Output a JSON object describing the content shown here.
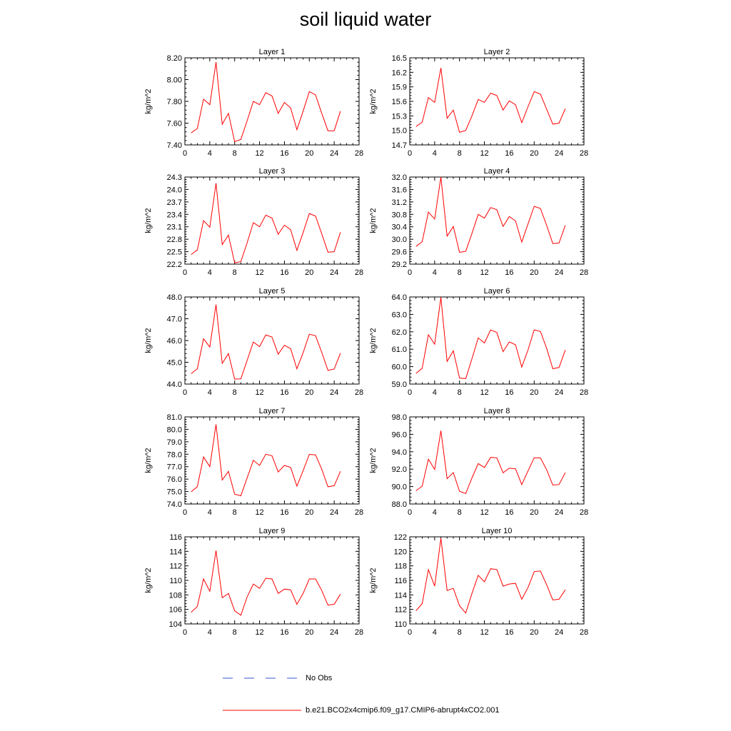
{
  "title": "soil liquid water",
  "legend": [
    {
      "label": "No Obs",
      "color": "#3355cc",
      "style": "dashed"
    },
    {
      "label": "b.e21.BCO2x4cmip6.f09_g17.CMIP6-abrupt4xCO2.001",
      "color": "#ff0000",
      "style": "solid"
    }
  ],
  "chart_data": [
    {
      "type": "line",
      "title": "Layer 1",
      "ylabel": "kg/m^2",
      "xlim": [
        0,
        28
      ],
      "xticks": [
        "0",
        "4",
        "8",
        "12",
        "16",
        "20",
        "24",
        "28"
      ],
      "ylim": [
        7.4,
        8.2
      ],
      "yticks": [
        "7.40",
        "7.60",
        "7.80",
        "8.00",
        "8.20"
      ],
      "series": [
        {
          "color": "#ff0000",
          "x": [
            1,
            2,
            3,
            4,
            5,
            6,
            7,
            8,
            9,
            10,
            11,
            12,
            13,
            14,
            15,
            16,
            17,
            18,
            19,
            20,
            21,
            22,
            23,
            24,
            25
          ],
          "y": [
            7.51,
            7.55,
            7.82,
            7.77,
            8.16,
            7.59,
            7.69,
            7.43,
            7.45,
            7.62,
            7.8,
            7.77,
            7.88,
            7.85,
            7.69,
            7.79,
            7.74,
            7.54,
            7.71,
            7.89,
            7.86,
            7.69,
            7.53,
            7.53,
            7.71
          ]
        }
      ]
    },
    {
      "type": "line",
      "title": "Layer 2",
      "ylabel": "kg/m^2",
      "xlim": [
        0,
        28
      ],
      "xticks": [
        "0",
        "4",
        "8",
        "12",
        "16",
        "20",
        "24",
        "28"
      ],
      "ylim": [
        14.7,
        16.5
      ],
      "yticks": [
        "14.7",
        "15.0",
        "15.3",
        "15.6",
        "15.9",
        "16.2",
        "16.5"
      ],
      "series": [
        {
          "color": "#ff0000",
          "x": [
            1,
            2,
            3,
            4,
            5,
            6,
            7,
            8,
            9,
            10,
            11,
            12,
            13,
            14,
            15,
            16,
            17,
            18,
            19,
            20,
            21,
            22,
            23,
            24,
            25
          ],
          "y": [
            15.08,
            15.17,
            15.68,
            15.58,
            16.29,
            15.25,
            15.42,
            14.96,
            15.0,
            15.3,
            15.64,
            15.58,
            15.77,
            15.72,
            15.42,
            15.61,
            15.53,
            15.16,
            15.49,
            15.8,
            15.75,
            15.44,
            15.13,
            15.15,
            15.45
          ]
        }
      ]
    },
    {
      "type": "line",
      "title": "Layer 3",
      "ylabel": "kg/m^2",
      "xlim": [
        0,
        28
      ],
      "xticks": [
        "0",
        "4",
        "8",
        "12",
        "16",
        "20",
        "24",
        "28"
      ],
      "ylim": [
        22.2,
        24.3
      ],
      "yticks": [
        "22.2",
        "22.5",
        "22.8",
        "23.1",
        "23.4",
        "23.7",
        "24.0",
        "24.3"
      ],
      "series": [
        {
          "color": "#ff0000",
          "x": [
            1,
            2,
            3,
            4,
            5,
            6,
            7,
            8,
            9,
            10,
            11,
            12,
            13,
            14,
            15,
            16,
            17,
            18,
            19,
            20,
            21,
            22,
            23,
            24,
            25
          ],
          "y": [
            22.43,
            22.54,
            23.25,
            23.09,
            24.15,
            22.67,
            22.9,
            22.23,
            22.26,
            22.71,
            23.2,
            23.1,
            23.38,
            23.31,
            22.92,
            23.14,
            23.03,
            22.53,
            22.96,
            23.42,
            23.36,
            22.93,
            22.49,
            22.5,
            22.97
          ]
        }
      ]
    },
    {
      "type": "line",
      "title": "Layer 4",
      "ylabel": "kg/m^2",
      "xlim": [
        0,
        28
      ],
      "xticks": [
        "0",
        "4",
        "8",
        "12",
        "16",
        "20",
        "24",
        "28"
      ],
      "ylim": [
        29.2,
        32.0
      ],
      "yticks": [
        "29.2",
        "29.6",
        "30.0",
        "30.4",
        "30.8",
        "31.2",
        "31.6",
        "32.0"
      ],
      "series": [
        {
          "color": "#ff0000",
          "x": [
            1,
            2,
            3,
            4,
            5,
            6,
            7,
            8,
            9,
            10,
            11,
            12,
            13,
            14,
            15,
            16,
            17,
            18,
            19,
            20,
            21,
            22,
            23,
            24,
            25
          ],
          "y": [
            29.77,
            29.92,
            30.87,
            30.65,
            32.0,
            30.1,
            30.41,
            29.58,
            29.61,
            30.19,
            30.8,
            30.68,
            31.02,
            30.95,
            30.41,
            30.73,
            30.59,
            29.91,
            30.49,
            31.06,
            30.99,
            30.45,
            29.86,
            29.88,
            30.45
          ]
        }
      ]
    },
    {
      "type": "line",
      "title": "Layer 5",
      "ylabel": "kg/m^2",
      "xlim": [
        0,
        28
      ],
      "xticks": [
        "0",
        "4",
        "8",
        "12",
        "16",
        "20",
        "24",
        "28"
      ],
      "ylim": [
        44.0,
        48.0
      ],
      "yticks": [
        "44.0",
        "45.0",
        "46.0",
        "47.0",
        "48.0"
      ],
      "series": [
        {
          "color": "#ff0000",
          "x": [
            1,
            2,
            3,
            4,
            5,
            6,
            7,
            8,
            9,
            10,
            11,
            12,
            13,
            14,
            15,
            16,
            17,
            18,
            19,
            20,
            21,
            22,
            23,
            24,
            25
          ],
          "y": [
            44.48,
            44.7,
            46.08,
            45.7,
            47.65,
            44.95,
            45.4,
            44.23,
            44.24,
            45.08,
            45.93,
            45.72,
            46.26,
            46.16,
            45.37,
            45.78,
            45.63,
            44.7,
            45.44,
            46.29,
            46.22,
            45.46,
            44.63,
            44.69,
            45.42
          ]
        }
      ]
    },
    {
      "type": "line",
      "title": "Layer 6",
      "ylabel": "kg/m^2",
      "xlim": [
        0,
        28
      ],
      "xticks": [
        "0",
        "4",
        "8",
        "12",
        "16",
        "20",
        "24",
        "28"
      ],
      "ylim": [
        59.0,
        64.0
      ],
      "yticks": [
        "59.0",
        "60.0",
        "61.0",
        "62.0",
        "63.0",
        "64.0"
      ],
      "series": [
        {
          "color": "#ff0000",
          "x": [
            1,
            2,
            3,
            4,
            5,
            6,
            7,
            8,
            9,
            10,
            11,
            12,
            13,
            14,
            15,
            16,
            17,
            18,
            19,
            20,
            21,
            22,
            23,
            24,
            25
          ],
          "y": [
            59.61,
            59.91,
            61.83,
            61.29,
            63.98,
            60.3,
            60.91,
            59.35,
            59.31,
            60.45,
            61.65,
            61.36,
            62.11,
            61.96,
            60.86,
            61.42,
            61.26,
            59.98,
            60.95,
            62.11,
            62.02,
            61.06,
            59.88,
            59.95,
            60.96
          ]
        }
      ]
    },
    {
      "type": "line",
      "title": "Layer 7",
      "ylabel": "kg/m^2",
      "xlim": [
        0,
        28
      ],
      "xticks": [
        "0",
        "4",
        "8",
        "12",
        "16",
        "20",
        "24",
        "28"
      ],
      "ylim": [
        74.0,
        81.0
      ],
      "yticks": [
        "74.0",
        "75.0",
        "76.0",
        "77.0",
        "78.0",
        "79.0",
        "80.0",
        "81.0"
      ],
      "series": [
        {
          "color": "#ff0000",
          "x": [
            1,
            2,
            3,
            4,
            5,
            6,
            7,
            8,
            9,
            10,
            11,
            12,
            13,
            14,
            15,
            16,
            17,
            18,
            19,
            20,
            21,
            22,
            23,
            24,
            25
          ],
          "y": [
            74.98,
            75.39,
            77.78,
            77.0,
            80.4,
            75.93,
            76.62,
            74.79,
            74.66,
            76.09,
            77.51,
            77.1,
            78.0,
            77.88,
            76.57,
            77.1,
            76.94,
            75.44,
            76.68,
            77.99,
            77.95,
            76.8,
            75.38,
            75.47,
            76.63
          ]
        }
      ]
    },
    {
      "type": "line",
      "title": "Layer 8",
      "ylabel": "kg/m^2",
      "xlim": [
        0,
        28
      ],
      "xticks": [
        "0",
        "4",
        "8",
        "12",
        "16",
        "20",
        "24",
        "28"
      ],
      "ylim": [
        88.0,
        98.0
      ],
      "yticks": [
        "88.0",
        "90.0",
        "92.0",
        "94.0",
        "96.0",
        "98.0"
      ],
      "series": [
        {
          "color": "#ff0000",
          "x": [
            1,
            2,
            3,
            4,
            5,
            6,
            7,
            8,
            9,
            10,
            11,
            12,
            13,
            14,
            15,
            16,
            17,
            18,
            19,
            20,
            21,
            22,
            23,
            24,
            25
          ],
          "y": [
            89.52,
            90.05,
            93.15,
            91.97,
            96.42,
            90.9,
            91.61,
            89.47,
            89.2,
            90.99,
            92.64,
            92.19,
            93.35,
            93.3,
            91.58,
            92.11,
            92.04,
            90.24,
            91.79,
            93.31,
            93.29,
            91.95,
            90.17,
            90.24,
            91.6
          ]
        }
      ]
    },
    {
      "type": "line",
      "title": "Layer 9",
      "ylabel": "kg/m^2",
      "xlim": [
        0,
        28
      ],
      "xticks": [
        "0",
        "4",
        "8",
        "12",
        "16",
        "20",
        "24",
        "28"
      ],
      "ylim": [
        104,
        116
      ],
      "yticks": [
        "104",
        "106",
        "108",
        "110",
        "112",
        "114",
        "116"
      ],
      "series": [
        {
          "color": "#ff0000",
          "x": [
            1,
            2,
            3,
            4,
            5,
            6,
            7,
            8,
            9,
            10,
            11,
            12,
            13,
            14,
            15,
            16,
            17,
            18,
            19,
            20,
            21,
            22,
            23,
            24,
            25
          ],
          "y": [
            105.6,
            106.4,
            110.2,
            108.5,
            114.1,
            107.6,
            108.2,
            105.8,
            105.2,
            107.7,
            109.5,
            108.9,
            110.3,
            110.2,
            108.2,
            108.8,
            108.7,
            106.7,
            108.2,
            110.2,
            110.2,
            108.6,
            106.6,
            106.7,
            108.1
          ]
        }
      ]
    },
    {
      "type": "line",
      "title": "Layer 10",
      "ylabel": "kg/m^2",
      "xlim": [
        0,
        28
      ],
      "xticks": [
        "0",
        "4",
        "8",
        "12",
        "16",
        "20",
        "24",
        "28"
      ],
      "ylim": [
        110,
        122
      ],
      "yticks": [
        "110",
        "112",
        "114",
        "116",
        "118",
        "120",
        "122"
      ],
      "series": [
        {
          "color": "#ff0000",
          "x": [
            1,
            2,
            3,
            4,
            5,
            6,
            7,
            8,
            9,
            10,
            11,
            12,
            13,
            14,
            15,
            16,
            17,
            18,
            19,
            20,
            21,
            22,
            23,
            24,
            25
          ],
          "y": [
            111.8,
            112.8,
            117.5,
            115.2,
            121.8,
            114.6,
            114.9,
            112.5,
            111.5,
            114.2,
            116.7,
            115.8,
            117.6,
            117.5,
            115.2,
            115.5,
            115.6,
            113.4,
            115.0,
            117.2,
            117.3,
            115.4,
            113.3,
            113.4,
            114.7
          ]
        }
      ]
    }
  ]
}
